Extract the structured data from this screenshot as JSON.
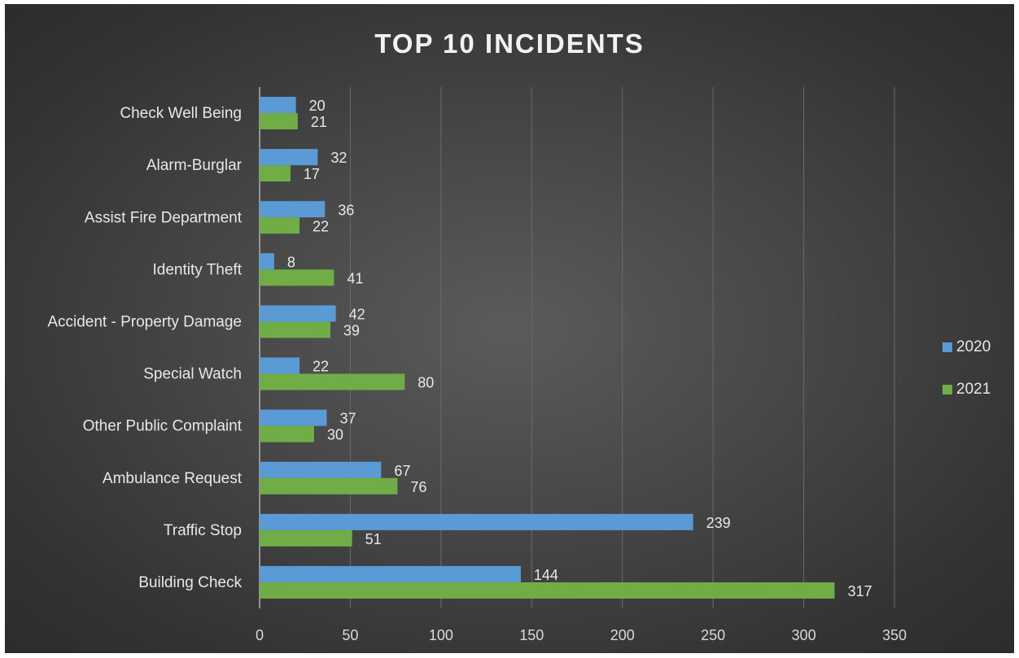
{
  "chart_data": {
    "type": "bar",
    "orientation": "horizontal",
    "title": "TOP 10 INCIDENTS",
    "xlabel": "",
    "ylabel": "",
    "categories": [
      "Check Well Being",
      "Alarm-Burglar",
      "Assist Fire Department",
      "Identity Theft",
      "Accident - Property Damage",
      "Special Watch",
      "Other Public Complaint",
      "Ambulance Request",
      "Traffic Stop",
      "Building Check"
    ],
    "series": [
      {
        "name": "2020",
        "color": "#5b9bd5",
        "values": [
          20,
          32,
          36,
          8,
          42,
          22,
          37,
          67,
          239,
          144
        ]
      },
      {
        "name": "2021",
        "color": "#70ad47",
        "values": [
          21,
          17,
          22,
          41,
          39,
          80,
          30,
          76,
          51,
          317
        ]
      }
    ],
    "xlim": [
      0,
      350
    ],
    "x_ticks": [
      0,
      50,
      100,
      150,
      200,
      250,
      300,
      350
    ],
    "grid": true,
    "legend_position": "right",
    "data_labels": true
  }
}
